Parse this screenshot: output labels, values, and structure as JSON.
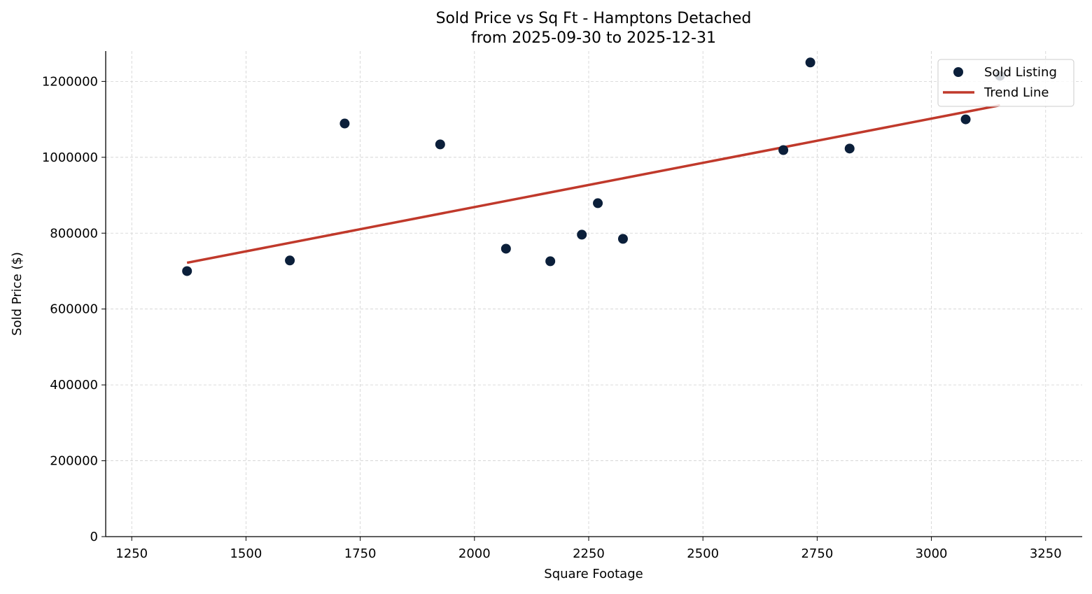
{
  "chart_data": {
    "type": "scatter",
    "title": "Sold Price vs Sq Ft - Hamptons Detached",
    "subtitle": "from 2025-09-30 to 2025-12-31",
    "xlabel": "Square Footage",
    "ylabel": "Sold Price ($)",
    "xlim": [
      1193,
      3330
    ],
    "ylim": [
      0,
      1280000
    ],
    "xticks": [
      1250,
      1500,
      1750,
      2000,
      2250,
      2500,
      2750,
      3000,
      3250
    ],
    "yticks": [
      0,
      200000,
      400000,
      600000,
      800000,
      1000000,
      1200000
    ],
    "grid": true,
    "legend_position": "top-right",
    "series": [
      {
        "name": "Sold Listing",
        "type": "scatter",
        "color": "#0b1f3a",
        "points": [
          {
            "x": 1371,
            "y": 700000
          },
          {
            "x": 1596,
            "y": 728000
          },
          {
            "x": 1716,
            "y": 1089000
          },
          {
            "x": 1925,
            "y": 1034000
          },
          {
            "x": 2069,
            "y": 759000
          },
          {
            "x": 2166,
            "y": 726000
          },
          {
            "x": 2235,
            "y": 796000
          },
          {
            "x": 2270,
            "y": 879000
          },
          {
            "x": 2325,
            "y": 785000
          },
          {
            "x": 2676,
            "y": 1019000
          },
          {
            "x": 2735,
            "y": 1250000
          },
          {
            "x": 2821,
            "y": 1023000
          },
          {
            "x": 3075,
            "y": 1100000
          },
          {
            "x": 3150,
            "y": 1215000
          }
        ]
      },
      {
        "name": "Trend Line",
        "type": "line",
        "color": "#c0392b",
        "points": [
          {
            "x": 1371,
            "y": 722000
          },
          {
            "x": 3150,
            "y": 1137000
          }
        ]
      }
    ]
  }
}
